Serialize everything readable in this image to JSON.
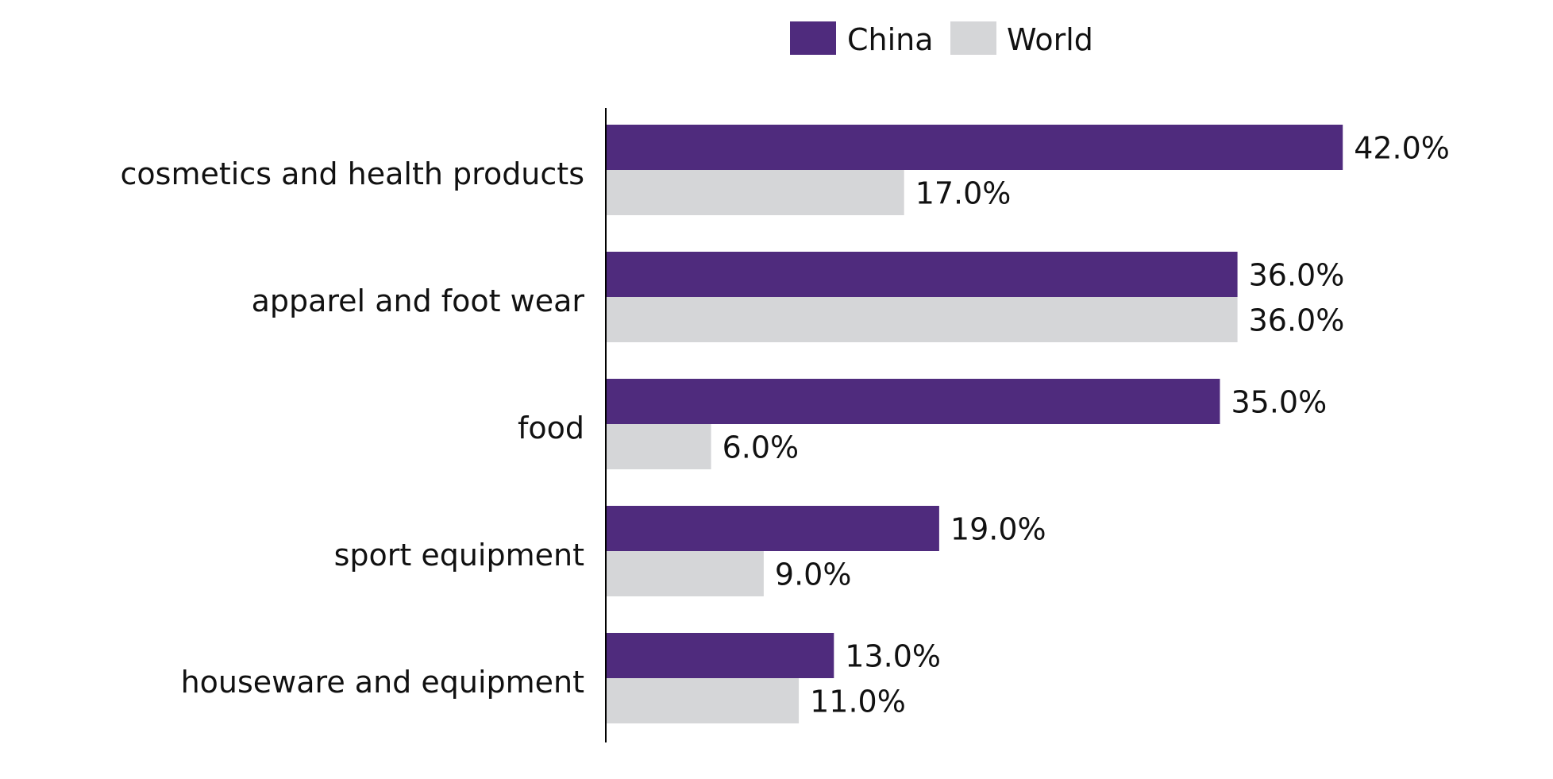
{
  "chart_data": {
    "type": "bar",
    "orientation": "horizontal",
    "title": "",
    "xlabel": "",
    "ylabel": "",
    "xlim": [
      0,
      42
    ],
    "categories": [
      "cosmetics and health products",
      "apparel and foot wear",
      "food",
      "sport equipment",
      "houseware and equipment"
    ],
    "series": [
      {
        "name": "China",
        "color": "#4f2b7d",
        "values": [
          42.0,
          36.0,
          35.0,
          19.0,
          13.0
        ],
        "labels": [
          "42.0%",
          "36.0%",
          "35.0%",
          "19.0%",
          "13.0%"
        ]
      },
      {
        "name": "World",
        "color": "#d5d6d8",
        "values": [
          17.0,
          36.0,
          6.0,
          9.0,
          11.0
        ],
        "labels": [
          "17.0%",
          "36.0%",
          "6.0%",
          "9.0%",
          "11.0%"
        ]
      }
    ],
    "legend": {
      "position": "top-center",
      "entries": [
        "China",
        "World"
      ]
    },
    "grid": false
  }
}
